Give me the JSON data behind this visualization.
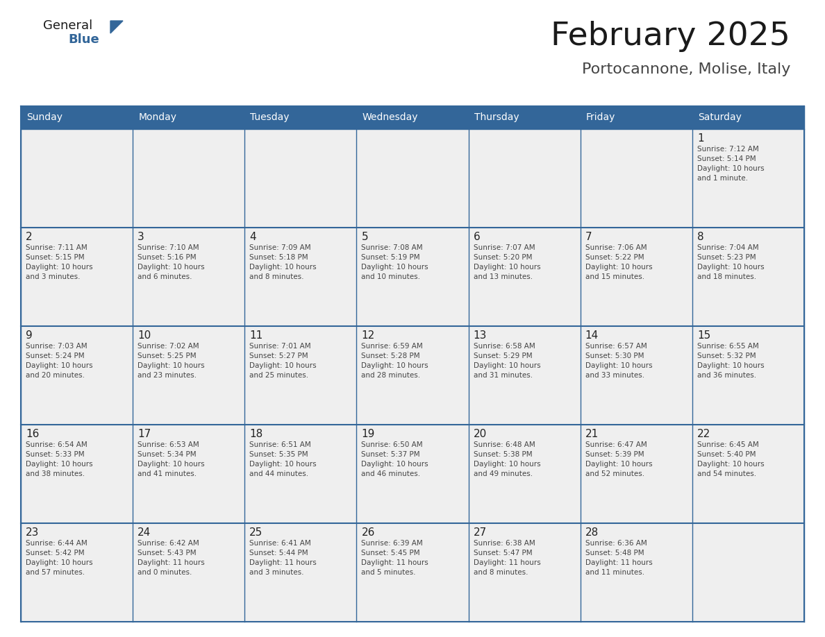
{
  "title": "February 2025",
  "subtitle": "Portocannone, Molise, Italy",
  "days_of_week": [
    "Sunday",
    "Monday",
    "Tuesday",
    "Wednesday",
    "Thursday",
    "Friday",
    "Saturday"
  ],
  "header_bg": "#336699",
  "header_text": "#FFFFFF",
  "cell_bg": "#EFEFEF",
  "cell_line_color": "#336699",
  "title_color": "#1a1a1a",
  "subtitle_color": "#444444",
  "day_num_color": "#222222",
  "cell_text_color": "#444444",
  "logo_general_color": "#1a1a1a",
  "logo_blue_color": "#336699",
  "logo_triangle_color": "#336699",
  "weeks": [
    [
      {
        "day": null,
        "text": ""
      },
      {
        "day": null,
        "text": ""
      },
      {
        "day": null,
        "text": ""
      },
      {
        "day": null,
        "text": ""
      },
      {
        "day": null,
        "text": ""
      },
      {
        "day": null,
        "text": ""
      },
      {
        "day": 1,
        "text": "Sunrise: 7:12 AM\nSunset: 5:14 PM\nDaylight: 10 hours\nand 1 minute."
      }
    ],
    [
      {
        "day": 2,
        "text": "Sunrise: 7:11 AM\nSunset: 5:15 PM\nDaylight: 10 hours\nand 3 minutes."
      },
      {
        "day": 3,
        "text": "Sunrise: 7:10 AM\nSunset: 5:16 PM\nDaylight: 10 hours\nand 6 minutes."
      },
      {
        "day": 4,
        "text": "Sunrise: 7:09 AM\nSunset: 5:18 PM\nDaylight: 10 hours\nand 8 minutes."
      },
      {
        "day": 5,
        "text": "Sunrise: 7:08 AM\nSunset: 5:19 PM\nDaylight: 10 hours\nand 10 minutes."
      },
      {
        "day": 6,
        "text": "Sunrise: 7:07 AM\nSunset: 5:20 PM\nDaylight: 10 hours\nand 13 minutes."
      },
      {
        "day": 7,
        "text": "Sunrise: 7:06 AM\nSunset: 5:22 PM\nDaylight: 10 hours\nand 15 minutes."
      },
      {
        "day": 8,
        "text": "Sunrise: 7:04 AM\nSunset: 5:23 PM\nDaylight: 10 hours\nand 18 minutes."
      }
    ],
    [
      {
        "day": 9,
        "text": "Sunrise: 7:03 AM\nSunset: 5:24 PM\nDaylight: 10 hours\nand 20 minutes."
      },
      {
        "day": 10,
        "text": "Sunrise: 7:02 AM\nSunset: 5:25 PM\nDaylight: 10 hours\nand 23 minutes."
      },
      {
        "day": 11,
        "text": "Sunrise: 7:01 AM\nSunset: 5:27 PM\nDaylight: 10 hours\nand 25 minutes."
      },
      {
        "day": 12,
        "text": "Sunrise: 6:59 AM\nSunset: 5:28 PM\nDaylight: 10 hours\nand 28 minutes."
      },
      {
        "day": 13,
        "text": "Sunrise: 6:58 AM\nSunset: 5:29 PM\nDaylight: 10 hours\nand 31 minutes."
      },
      {
        "day": 14,
        "text": "Sunrise: 6:57 AM\nSunset: 5:30 PM\nDaylight: 10 hours\nand 33 minutes."
      },
      {
        "day": 15,
        "text": "Sunrise: 6:55 AM\nSunset: 5:32 PM\nDaylight: 10 hours\nand 36 minutes."
      }
    ],
    [
      {
        "day": 16,
        "text": "Sunrise: 6:54 AM\nSunset: 5:33 PM\nDaylight: 10 hours\nand 38 minutes."
      },
      {
        "day": 17,
        "text": "Sunrise: 6:53 AM\nSunset: 5:34 PM\nDaylight: 10 hours\nand 41 minutes."
      },
      {
        "day": 18,
        "text": "Sunrise: 6:51 AM\nSunset: 5:35 PM\nDaylight: 10 hours\nand 44 minutes."
      },
      {
        "day": 19,
        "text": "Sunrise: 6:50 AM\nSunset: 5:37 PM\nDaylight: 10 hours\nand 46 minutes."
      },
      {
        "day": 20,
        "text": "Sunrise: 6:48 AM\nSunset: 5:38 PM\nDaylight: 10 hours\nand 49 minutes."
      },
      {
        "day": 21,
        "text": "Sunrise: 6:47 AM\nSunset: 5:39 PM\nDaylight: 10 hours\nand 52 minutes."
      },
      {
        "day": 22,
        "text": "Sunrise: 6:45 AM\nSunset: 5:40 PM\nDaylight: 10 hours\nand 54 minutes."
      }
    ],
    [
      {
        "day": 23,
        "text": "Sunrise: 6:44 AM\nSunset: 5:42 PM\nDaylight: 10 hours\nand 57 minutes."
      },
      {
        "day": 24,
        "text": "Sunrise: 6:42 AM\nSunset: 5:43 PM\nDaylight: 11 hours\nand 0 minutes."
      },
      {
        "day": 25,
        "text": "Sunrise: 6:41 AM\nSunset: 5:44 PM\nDaylight: 11 hours\nand 3 minutes."
      },
      {
        "day": 26,
        "text": "Sunrise: 6:39 AM\nSunset: 5:45 PM\nDaylight: 11 hours\nand 5 minutes."
      },
      {
        "day": 27,
        "text": "Sunrise: 6:38 AM\nSunset: 5:47 PM\nDaylight: 11 hours\nand 8 minutes."
      },
      {
        "day": 28,
        "text": "Sunrise: 6:36 AM\nSunset: 5:48 PM\nDaylight: 11 hours\nand 11 minutes."
      },
      {
        "day": null,
        "text": ""
      }
    ]
  ]
}
